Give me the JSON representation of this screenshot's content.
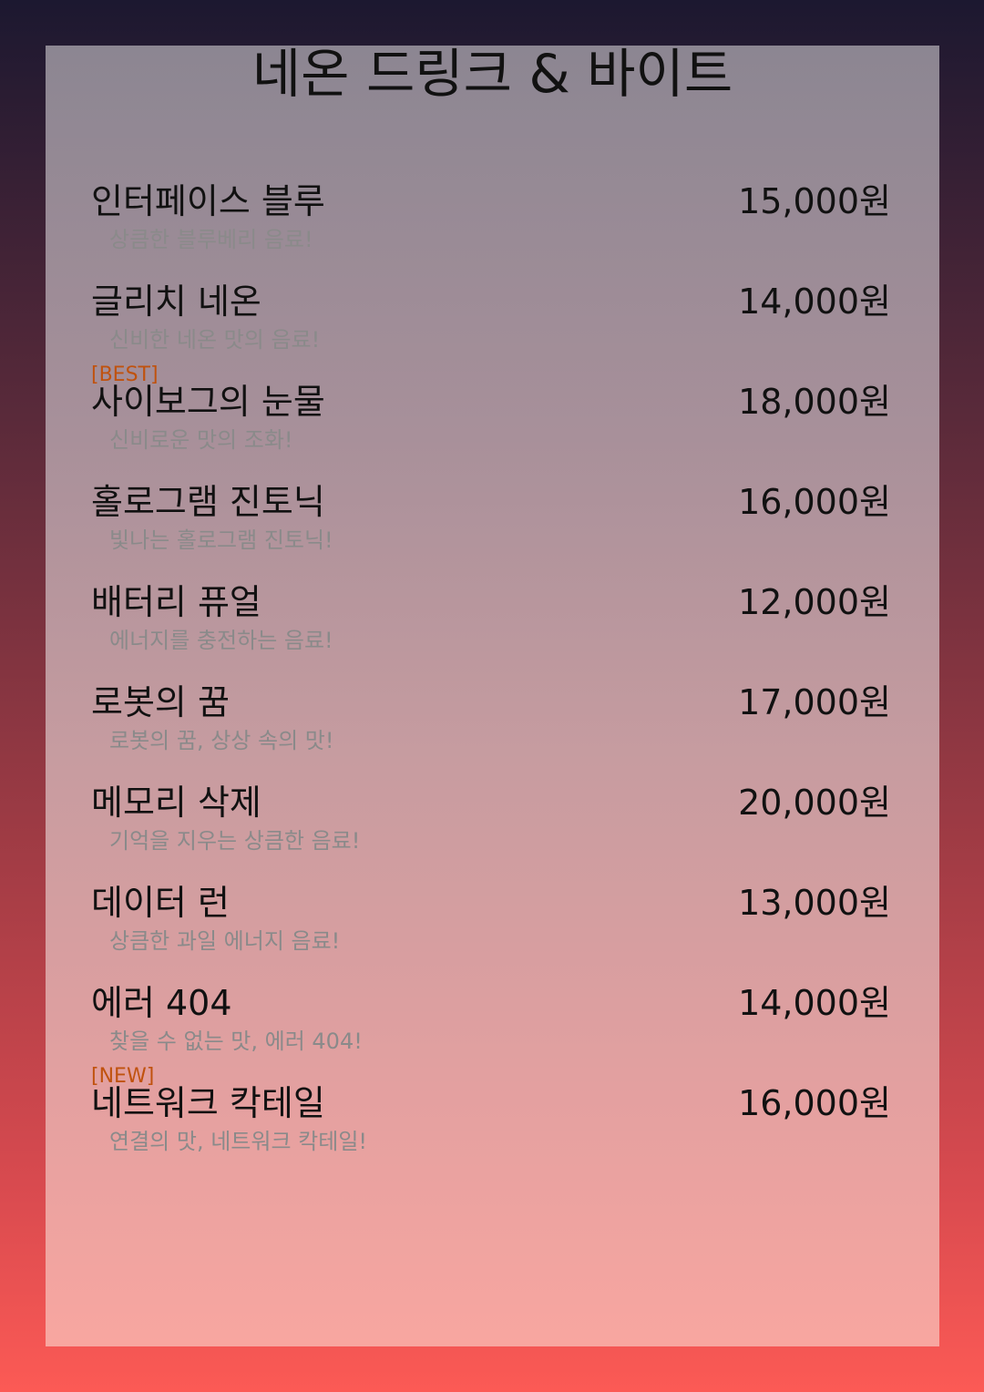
{
  "title": "네온 드링크 & 바이트",
  "items": [
    {
      "badge": "",
      "name": "인터페이스 블루",
      "price": "15,000원",
      "desc": "상큼한 블루베리 음료!"
    },
    {
      "badge": "",
      "name": "글리치 네온",
      "price": "14,000원",
      "desc": "신비한 네온 맛의 음료!"
    },
    {
      "badge": "[BEST]",
      "name": "사이보그의 눈물",
      "price": "18,000원",
      "desc": "신비로운 맛의 조화!"
    },
    {
      "badge": "",
      "name": "홀로그램 진토닉",
      "price": "16,000원",
      "desc": "빛나는 홀로그램 진토닉!"
    },
    {
      "badge": "",
      "name": "배터리 퓨얼",
      "price": "12,000원",
      "desc": "에너지를 충전하는 음료!"
    },
    {
      "badge": "",
      "name": "로봇의 꿈",
      "price": "17,000원",
      "desc": "로봇의 꿈, 상상 속의 맛!"
    },
    {
      "badge": "",
      "name": "메모리 삭제",
      "price": "20,000원",
      "desc": "기억을 지우는 상큼한 음료!"
    },
    {
      "badge": "",
      "name": "데이터 런",
      "price": "13,000원",
      "desc": "상큼한 과일 에너지 음료!"
    },
    {
      "badge": "",
      "name": "에러 404",
      "price": "14,000원",
      "desc": "찾을 수 없는 맛, 에러 404!"
    },
    {
      "badge": "[NEW]",
      "name": "네트워크 칵테일",
      "price": "16,000원",
      "desc": "연결의 맛, 네트워크 칵테일!"
    }
  ],
  "colors": {
    "badge": "#c0520e",
    "text": "#111111",
    "description": "#8a8a8a"
  }
}
